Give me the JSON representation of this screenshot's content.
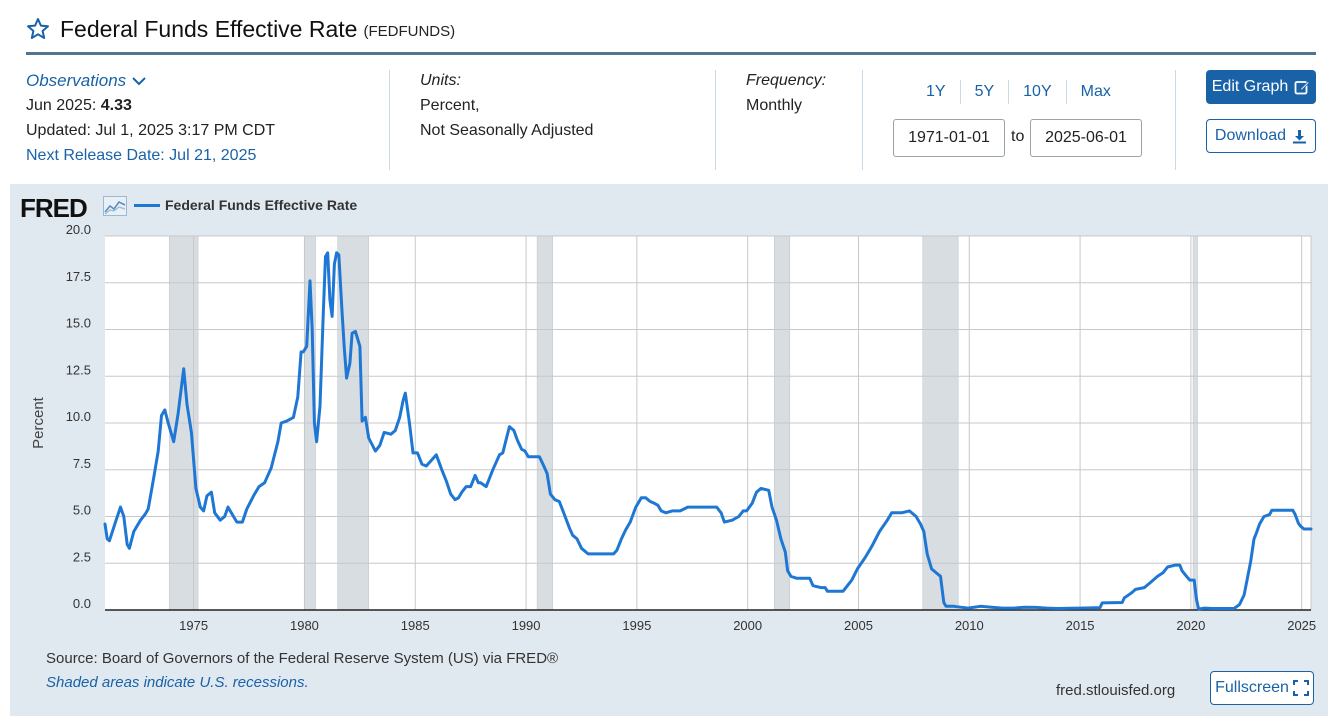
{
  "header": {
    "title": "Federal Funds Effective Rate",
    "series_id": "(FEDFUNDS)",
    "star_icon": "star-outline-icon"
  },
  "observations": {
    "label": "Observations",
    "latest_date": "Jun 2025:",
    "latest_value": "4.33",
    "updated": "Updated: Jul 1, 2025 3:17 PM CDT",
    "next_release": "Next Release Date: Jul 21, 2025"
  },
  "units": {
    "label": "Units:",
    "line1": "Percent,",
    "line2": "Not Seasonally Adjusted"
  },
  "frequency": {
    "label": "Frequency:",
    "value": "Monthly"
  },
  "ranges": [
    "1Y",
    "5Y",
    "10Y",
    "Max"
  ],
  "dates": {
    "start": "1971-01-01",
    "separator": "to",
    "end": "2025-06-01"
  },
  "buttons": {
    "edit_graph": "Edit Graph",
    "download": "Download",
    "fullscreen": "Fullscreen"
  },
  "footer": {
    "source": "Source: Board of Governors of the Federal Reserve System (US) via FRED®",
    "recession_note": "Shaded areas indicate U.S. recessions.",
    "site": "fred.stlouisfed.org"
  },
  "colors": {
    "line": "#1f77d4",
    "accent": "#1a62a8",
    "recession": "#d8dde2",
    "panel": "#e1e9f0"
  },
  "chart_data": {
    "type": "line",
    "logo": "FRED",
    "legend": "Federal Funds Effective Rate",
    "ylabel": "Percent",
    "ylim": [
      0,
      20
    ],
    "xlim": [
      1971.0,
      2025.42
    ],
    "yticks": [
      "0.0",
      "2.5",
      "5.0",
      "7.5",
      "10.0",
      "12.5",
      "15.0",
      "17.5",
      "20.0"
    ],
    "xticks": [
      "1975",
      "1980",
      "1985",
      "1990",
      "1995",
      "2000",
      "2005",
      "2010",
      "2015",
      "2020",
      "2025"
    ],
    "grid": true,
    "recessions": [
      [
        1973.9,
        1975.2
      ],
      [
        1980.0,
        1980.5
      ],
      [
        1981.5,
        1982.9
      ],
      [
        1990.5,
        1991.2
      ],
      [
        2001.2,
        2001.9
      ],
      [
        2007.9,
        2009.5
      ],
      [
        2020.1,
        2020.3
      ]
    ],
    "series": [
      {
        "name": "Federal Funds Effective Rate",
        "points": [
          [
            1971.0,
            4.6
          ],
          [
            1971.1,
            3.8
          ],
          [
            1971.2,
            3.7
          ],
          [
            1971.5,
            4.8
          ],
          [
            1971.7,
            5.5
          ],
          [
            1971.85,
            5.0
          ],
          [
            1972.0,
            3.5
          ],
          [
            1972.1,
            3.3
          ],
          [
            1972.3,
            4.2
          ],
          [
            1972.6,
            4.8
          ],
          [
            1972.8,
            5.1
          ],
          [
            1972.95,
            5.4
          ],
          [
            1973.2,
            7.1
          ],
          [
            1973.4,
            8.5
          ],
          [
            1973.55,
            10.4
          ],
          [
            1973.7,
            10.7
          ],
          [
            1973.85,
            10.0
          ],
          [
            1974.1,
            9.0
          ],
          [
            1974.3,
            10.5
          ],
          [
            1974.55,
            12.9
          ],
          [
            1974.7,
            11.0
          ],
          [
            1974.9,
            9.5
          ],
          [
            1975.1,
            6.5
          ],
          [
            1975.3,
            5.5
          ],
          [
            1975.45,
            5.3
          ],
          [
            1975.6,
            6.1
          ],
          [
            1975.8,
            6.3
          ],
          [
            1975.95,
            5.2
          ],
          [
            1976.2,
            4.8
          ],
          [
            1976.4,
            5.0
          ],
          [
            1976.55,
            5.5
          ],
          [
            1976.8,
            5.0
          ],
          [
            1976.95,
            4.7
          ],
          [
            1977.2,
            4.7
          ],
          [
            1977.4,
            5.4
          ],
          [
            1977.7,
            6.1
          ],
          [
            1977.95,
            6.6
          ],
          [
            1978.2,
            6.8
          ],
          [
            1978.5,
            7.6
          ],
          [
            1978.8,
            9.0
          ],
          [
            1978.95,
            10.0
          ],
          [
            1979.2,
            10.1
          ],
          [
            1979.5,
            10.3
          ],
          [
            1979.7,
            11.4
          ],
          [
            1979.85,
            13.8
          ],
          [
            1979.95,
            13.8
          ],
          [
            1980.1,
            14.1
          ],
          [
            1980.25,
            17.6
          ],
          [
            1980.35,
            15.0
          ],
          [
            1980.45,
            10.0
          ],
          [
            1980.55,
            9.0
          ],
          [
            1980.7,
            10.9
          ],
          [
            1980.85,
            15.9
          ],
          [
            1980.95,
            18.9
          ],
          [
            1981.05,
            19.1
          ],
          [
            1981.15,
            16.6
          ],
          [
            1981.25,
            15.7
          ],
          [
            1981.35,
            18.5
          ],
          [
            1981.45,
            19.1
          ],
          [
            1981.55,
            19.0
          ],
          [
            1981.7,
            15.9
          ],
          [
            1981.8,
            14.0
          ],
          [
            1981.9,
            12.4
          ],
          [
            1982.05,
            13.2
          ],
          [
            1982.15,
            14.8
          ],
          [
            1982.3,
            14.9
          ],
          [
            1982.5,
            14.1
          ],
          [
            1982.6,
            10.1
          ],
          [
            1982.75,
            10.3
          ],
          [
            1982.9,
            9.2
          ],
          [
            1983.2,
            8.5
          ],
          [
            1983.4,
            8.8
          ],
          [
            1983.6,
            9.5
          ],
          [
            1983.9,
            9.4
          ],
          [
            1984.1,
            9.6
          ],
          [
            1984.3,
            10.3
          ],
          [
            1984.45,
            11.2
          ],
          [
            1984.55,
            11.6
          ],
          [
            1984.75,
            9.9
          ],
          [
            1984.9,
            8.4
          ],
          [
            1985.1,
            8.4
          ],
          [
            1985.3,
            7.8
          ],
          [
            1985.5,
            7.7
          ],
          [
            1985.8,
            8.1
          ],
          [
            1985.95,
            8.3
          ],
          [
            1986.2,
            7.5
          ],
          [
            1986.4,
            6.9
          ],
          [
            1986.6,
            6.2
          ],
          [
            1986.8,
            5.9
          ],
          [
            1986.95,
            6.0
          ],
          [
            1987.1,
            6.3
          ],
          [
            1987.3,
            6.6
          ],
          [
            1987.5,
            6.6
          ],
          [
            1987.7,
            7.2
          ],
          [
            1987.85,
            6.8
          ],
          [
            1987.95,
            6.8
          ],
          [
            1988.2,
            6.6
          ],
          [
            1988.5,
            7.5
          ],
          [
            1988.8,
            8.3
          ],
          [
            1988.95,
            8.4
          ],
          [
            1989.1,
            9.1
          ],
          [
            1989.25,
            9.8
          ],
          [
            1989.45,
            9.6
          ],
          [
            1989.6,
            9.1
          ],
          [
            1989.8,
            8.6
          ],
          [
            1989.95,
            8.5
          ],
          [
            1990.1,
            8.2
          ],
          [
            1990.4,
            8.2
          ],
          [
            1990.6,
            8.2
          ],
          [
            1990.8,
            7.7
          ],
          [
            1990.95,
            7.3
          ],
          [
            1991.1,
            6.2
          ],
          [
            1991.3,
            5.9
          ],
          [
            1991.5,
            5.8
          ],
          [
            1991.7,
            5.2
          ],
          [
            1991.95,
            4.4
          ],
          [
            1992.1,
            4.0
          ],
          [
            1992.3,
            3.8
          ],
          [
            1992.5,
            3.3
          ],
          [
            1992.8,
            3.0
          ],
          [
            1992.95,
            3.0
          ],
          [
            1993.3,
            3.0
          ],
          [
            1993.6,
            3.0
          ],
          [
            1993.95,
            3.0
          ],
          [
            1994.1,
            3.2
          ],
          [
            1994.3,
            3.8
          ],
          [
            1994.5,
            4.3
          ],
          [
            1994.7,
            4.7
          ],
          [
            1994.95,
            5.5
          ],
          [
            1995.2,
            6.0
          ],
          [
            1995.4,
            6.0
          ],
          [
            1995.6,
            5.8
          ],
          [
            1995.8,
            5.7
          ],
          [
            1995.95,
            5.6
          ],
          [
            1996.1,
            5.3
          ],
          [
            1996.3,
            5.2
          ],
          [
            1996.6,
            5.3
          ],
          [
            1996.95,
            5.3
          ],
          [
            1997.3,
            5.5
          ],
          [
            1997.6,
            5.5
          ],
          [
            1997.95,
            5.5
          ],
          [
            1998.3,
            5.5
          ],
          [
            1998.6,
            5.5
          ],
          [
            1998.8,
            5.2
          ],
          [
            1998.95,
            4.7
          ],
          [
            1999.3,
            4.8
          ],
          [
            1999.6,
            5.0
          ],
          [
            1999.8,
            5.3
          ],
          [
            1999.95,
            5.3
          ],
          [
            2000.2,
            5.7
          ],
          [
            2000.4,
            6.3
          ],
          [
            2000.6,
            6.5
          ],
          [
            2000.95,
            6.4
          ],
          [
            2001.1,
            5.5
          ],
          [
            2001.3,
            4.8
          ],
          [
            2001.5,
            3.8
          ],
          [
            2001.7,
            3.1
          ],
          [
            2001.8,
            2.1
          ],
          [
            2001.95,
            1.8
          ],
          [
            2002.2,
            1.7
          ],
          [
            2002.5,
            1.7
          ],
          [
            2002.8,
            1.7
          ],
          [
            2002.95,
            1.3
          ],
          [
            2003.3,
            1.2
          ],
          [
            2003.5,
            1.2
          ],
          [
            2003.6,
            1.0
          ],
          [
            2003.95,
            1.0
          ],
          [
            2004.3,
            1.0
          ],
          [
            2004.5,
            1.3
          ],
          [
            2004.7,
            1.6
          ],
          [
            2004.95,
            2.2
          ],
          [
            2005.3,
            2.8
          ],
          [
            2005.6,
            3.4
          ],
          [
            2005.95,
            4.2
          ],
          [
            2006.3,
            4.8
          ],
          [
            2006.5,
            5.2
          ],
          [
            2006.95,
            5.2
          ],
          [
            2007.3,
            5.3
          ],
          [
            2007.6,
            5.0
          ],
          [
            2007.8,
            4.6
          ],
          [
            2007.95,
            4.2
          ],
          [
            2008.1,
            3.0
          ],
          [
            2008.3,
            2.2
          ],
          [
            2008.5,
            2.0
          ],
          [
            2008.7,
            1.8
          ],
          [
            2008.85,
            0.4
          ],
          [
            2008.95,
            0.2
          ],
          [
            2009.3,
            0.2
          ],
          [
            2009.6,
            0.15
          ],
          [
            2009.95,
            0.1
          ],
          [
            2010.5,
            0.2
          ],
          [
            2011.0,
            0.15
          ],
          [
            2011.5,
            0.1
          ],
          [
            2012.0,
            0.1
          ],
          [
            2012.5,
            0.15
          ],
          [
            2013.0,
            0.14
          ],
          [
            2013.5,
            0.1
          ],
          [
            2014.0,
            0.08
          ],
          [
            2014.5,
            0.09
          ],
          [
            2015.0,
            0.1
          ],
          [
            2015.9,
            0.13
          ],
          [
            2016.0,
            0.38
          ],
          [
            2016.9,
            0.4
          ],
          [
            2017.0,
            0.65
          ],
          [
            2017.3,
            0.9
          ],
          [
            2017.5,
            1.1
          ],
          [
            2017.9,
            1.2
          ],
          [
            2018.2,
            1.5
          ],
          [
            2018.5,
            1.8
          ],
          [
            2018.75,
            2.0
          ],
          [
            2018.95,
            2.3
          ],
          [
            2019.3,
            2.4
          ],
          [
            2019.5,
            2.4
          ],
          [
            2019.6,
            2.1
          ],
          [
            2019.8,
            1.8
          ],
          [
            2019.95,
            1.6
          ],
          [
            2020.15,
            1.6
          ],
          [
            2020.25,
            0.6
          ],
          [
            2020.35,
            0.05
          ],
          [
            2020.6,
            0.1
          ],
          [
            2021.0,
            0.08
          ],
          [
            2021.5,
            0.08
          ],
          [
            2021.95,
            0.08
          ],
          [
            2022.2,
            0.3
          ],
          [
            2022.4,
            0.8
          ],
          [
            2022.55,
            1.7
          ],
          [
            2022.7,
            2.6
          ],
          [
            2022.85,
            3.8
          ],
          [
            2022.95,
            4.1
          ],
          [
            2023.1,
            4.6
          ],
          [
            2023.3,
            5.0
          ],
          [
            2023.55,
            5.1
          ],
          [
            2023.65,
            5.33
          ],
          [
            2023.95,
            5.33
          ],
          [
            2024.3,
            5.33
          ],
          [
            2024.6,
            5.33
          ],
          [
            2024.7,
            5.13
          ],
          [
            2024.85,
            4.64
          ],
          [
            2024.95,
            4.48
          ],
          [
            2025.1,
            4.33
          ],
          [
            2025.42,
            4.33
          ]
        ]
      }
    ]
  }
}
